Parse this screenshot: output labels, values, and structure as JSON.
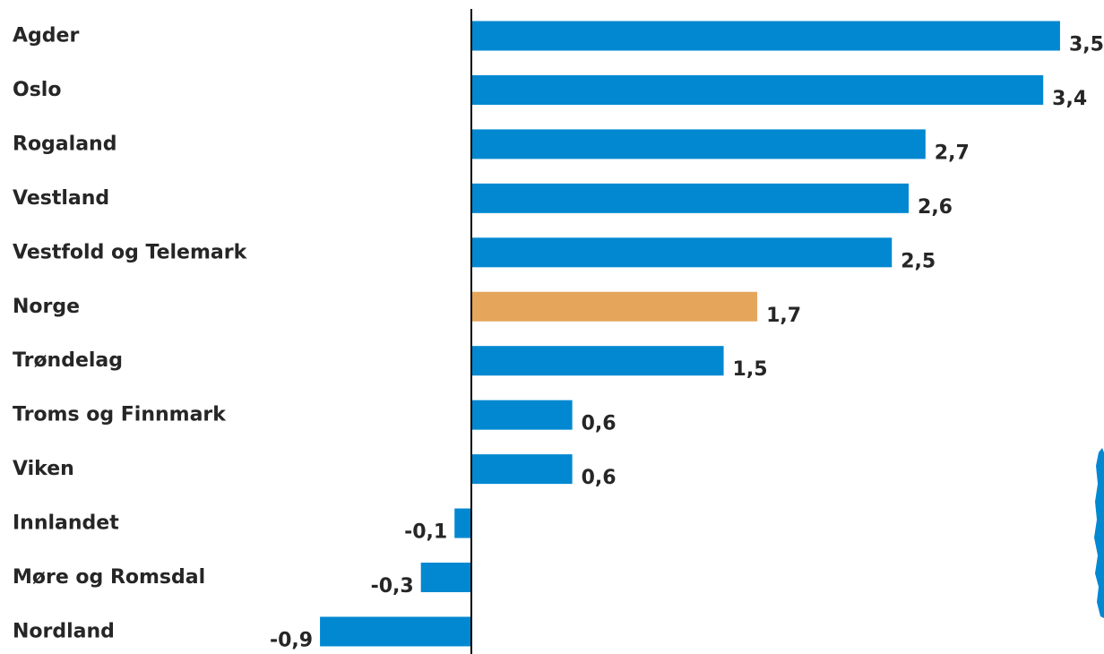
{
  "chart_data": {
    "type": "bar",
    "orientation": "horizontal",
    "title": "",
    "xlabel": "",
    "ylabel": "",
    "categories": [
      "Agder",
      "Oslo",
      "Rogaland",
      "Vestland",
      "Vestfold og Telemark",
      "Norge",
      "Trøndelag",
      "Troms og Finnmark",
      "Viken",
      "Innlandet",
      "Møre og Romsdal",
      "Nordland"
    ],
    "values": [
      3.5,
      3.4,
      2.7,
      2.6,
      2.5,
      1.7,
      1.5,
      0.6,
      0.6,
      -0.1,
      -0.3,
      -0.9
    ],
    "value_labels": [
      "3,5",
      "3,4",
      "2,7",
      "2,6",
      "2,5",
      "1,7",
      "1,5",
      "0,6",
      "0,6",
      "-0,1",
      "-0,3",
      "-0,9"
    ],
    "highlight_category": "Norge",
    "xlim": [
      -0.9,
      3.5
    ],
    "grid": false,
    "legend": "none",
    "colors": {
      "bar": "#0288d1",
      "highlight": "#e5a65c",
      "axis": "#000000",
      "text": "#262626",
      "decoration": "#0288d1"
    }
  },
  "decoration": {
    "icon": "map-fragment-icon"
  }
}
